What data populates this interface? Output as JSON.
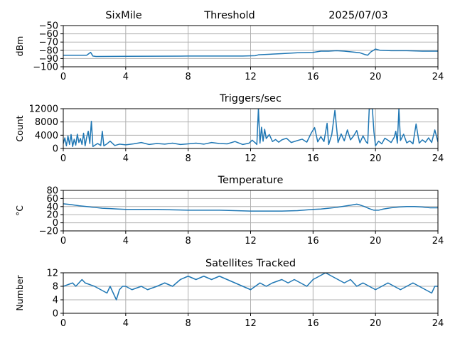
{
  "header": {
    "station": "SixMile",
    "title": "Threshold",
    "date": "2025/07/03"
  },
  "colors": {
    "series": "#1f77b4",
    "grid": "#b0b0b0",
    "axes": "#000000",
    "background": "#ffffff"
  },
  "chart_data": [
    {
      "type": "line",
      "title": "",
      "xlabel": "",
      "ylabel": "dBm",
      "xlim": [
        0,
        24
      ],
      "ylim": [
        -100,
        -50
      ],
      "x_ticks": [
        0,
        4,
        8,
        12,
        16,
        20,
        24
      ],
      "y_ticks": [
        -100,
        -90,
        -80,
        -70,
        -60,
        -50
      ],
      "x_tick_labels": [
        "0",
        "4",
        "8",
        "12",
        "16",
        "20",
        "24"
      ],
      "y_tick_labels": [
        "−100",
        "−90",
        "−80",
        "−70",
        "−60",
        "−50"
      ],
      "grid": true,
      "series": [
        {
          "x": [
            0,
            1.5,
            1.75,
            1.9,
            2.1,
            4,
            8,
            10,
            11.5,
            12.3,
            12.5,
            13,
            14,
            15,
            16,
            16.5,
            17,
            17.5,
            18,
            18.5,
            19,
            19.3,
            19.5,
            19.7,
            20,
            20.3,
            21,
            22,
            23,
            24
          ],
          "y": [
            -86,
            -86,
            -82.5,
            -87,
            -87.5,
            -87.3,
            -87,
            -87,
            -87,
            -86.5,
            -85.5,
            -85,
            -84,
            -83,
            -82.5,
            -81,
            -81,
            -80.5,
            -81,
            -82,
            -83,
            -85,
            -86,
            -82,
            -78.5,
            -80,
            -80.5,
            -80.5,
            -81,
            -81
          ]
        }
      ]
    },
    {
      "type": "line",
      "title": "Triggers/sec",
      "xlabel": "",
      "ylabel": "Count",
      "xlim": [
        0,
        24
      ],
      "ylim": [
        0,
        12000
      ],
      "x_ticks": [
        0,
        4,
        8,
        12,
        16,
        20,
        24
      ],
      "y_ticks": [
        0,
        4000,
        8000,
        12000
      ],
      "x_tick_labels": [
        "0",
        "4",
        "8",
        "12",
        "16",
        "20",
        "24"
      ],
      "y_tick_labels": [
        "0",
        "4000",
        "8000",
        "12000"
      ],
      "grid": true,
      "series": [
        {
          "x": [
            0,
            0.1,
            0.2,
            0.3,
            0.4,
            0.5,
            0.6,
            0.7,
            0.8,
            0.9,
            1.0,
            1.1,
            1.2,
            1.3,
            1.4,
            1.5,
            1.6,
            1.7,
            1.8,
            1.9,
            2.0,
            2.2,
            2.4,
            2.5,
            2.6,
            2.8,
            3.0,
            3.3,
            3.6,
            4.0,
            4.5,
            5.0,
            5.5,
            6.0,
            6.5,
            7.0,
            7.5,
            8.0,
            8.5,
            9.0,
            9.5,
            10.0,
            10.5,
            11.0,
            11.5,
            11.9,
            12.1,
            12.3,
            12.4,
            12.5,
            12.6,
            12.7,
            12.8,
            12.9,
            13.0,
            13.2,
            13.4,
            13.6,
            13.8,
            14.0,
            14.3,
            14.6,
            15.0,
            15.3,
            15.6,
            15.9,
            16.1,
            16.3,
            16.5,
            16.7,
            16.9,
            17.0,
            17.2,
            17.4,
            17.6,
            17.8,
            18.0,
            18.2,
            18.4,
            18.6,
            18.8,
            19.0,
            19.2,
            19.4,
            19.5,
            19.6,
            19.7,
            19.8,
            19.9,
            20.0,
            20.2,
            20.4,
            20.6,
            20.8,
            21.0,
            21.2,
            21.3,
            21.4,
            21.5,
            21.6,
            21.8,
            22.0,
            22.2,
            22.4,
            22.6,
            22.8,
            23.0,
            23.2,
            23.4,
            23.6,
            23.8,
            24.0
          ],
          "y": [
            1500,
            3200,
            800,
            3800,
            1200,
            4200,
            600,
            2800,
            1000,
            4300,
            1800,
            3000,
            1200,
            4600,
            800,
            3400,
            5200,
            1500,
            8200,
            600,
            900,
            1500,
            900,
            5200,
            800,
            1400,
            2200,
            900,
            1300,
            1100,
            1400,
            1800,
            1200,
            1500,
            1300,
            1600,
            1200,
            1400,
            1600,
            1300,
            1800,
            1500,
            1400,
            2100,
            1200,
            1600,
            2500,
            1700,
            1200,
            12000,
            1600,
            6400,
            2200,
            5800,
            3000,
            4200,
            2100,
            2700,
            1900,
            2600,
            3100,
            1800,
            2400,
            2800,
            1900,
            4800,
            6300,
            2000,
            3600,
            2100,
            7600,
            1200,
            4200,
            11500,
            1800,
            4400,
            2300,
            5600,
            2600,
            3800,
            5400,
            1700,
            3800,
            2000,
            1500,
            12000,
            12000,
            12000,
            5000,
            800,
            2200,
            1400,
            3100,
            2500,
            1800,
            3400,
            5200,
            1600,
            12000,
            2400,
            4300,
            1700,
            2300,
            1400,
            7400,
            1600,
            2600,
            1900,
            3200,
            1800,
            5600,
            2000
          ]
        }
      ]
    },
    {
      "type": "line",
      "title": "Temperature",
      "xlabel": "",
      "ylabel": "°C",
      "xlim": [
        0,
        24
      ],
      "ylim": [
        -20,
        80
      ],
      "x_ticks": [
        0,
        4,
        8,
        12,
        16,
        20,
        24
      ],
      "y_ticks": [
        -20,
        0,
        20,
        40,
        60,
        80
      ],
      "x_tick_labels": [
        "0",
        "4",
        "8",
        "12",
        "16",
        "20",
        "24"
      ],
      "y_tick_labels": [
        "−20",
        "0",
        "20",
        "40",
        "60",
        "80"
      ],
      "grid": true,
      "series": [
        {
          "x": [
            0,
            0.5,
            1,
            1.5,
            2,
            2.5,
            3,
            3.5,
            4,
            5,
            6,
            7,
            8,
            9,
            10,
            11,
            12,
            13,
            14,
            15,
            16,
            16.5,
            17,
            17.5,
            18,
            18.5,
            18.8,
            19,
            19.3,
            19.6,
            19.9,
            20.2,
            20.5,
            21,
            21.5,
            22,
            22.5,
            23,
            23.5,
            24
          ],
          "y": [
            47,
            45,
            42,
            40,
            38,
            36,
            35,
            34,
            33,
            33,
            33,
            32,
            31,
            31,
            31,
            30,
            29,
            29,
            29,
            30,
            33,
            34,
            36,
            38,
            41,
            44,
            46,
            44,
            40,
            35,
            31,
            31,
            34,
            37,
            39,
            40,
            40,
            39,
            37,
            37
          ]
        }
      ]
    },
    {
      "type": "line",
      "title": "Satellites Tracked",
      "xlabel": "",
      "ylabel": "Number",
      "xlim": [
        0,
        24
      ],
      "ylim": [
        0,
        12
      ],
      "x_ticks": [
        0,
        4,
        8,
        12,
        16,
        20,
        24
      ],
      "y_ticks": [
        0,
        4,
        8,
        12
      ],
      "x_tick_labels": [
        "0",
        "4",
        "8",
        "12",
        "16",
        "20",
        "24"
      ],
      "y_tick_labels": [
        "0",
        "4",
        "8",
        "12"
      ],
      "grid": true,
      "series": [
        {
          "x": [
            0,
            0.6,
            0.8,
            1.2,
            1.4,
            2.0,
            2.4,
            2.8,
            3.0,
            3.2,
            3.4,
            3.6,
            3.8,
            4.0,
            4.4,
            5.0,
            5.4,
            6.0,
            6.5,
            7.0,
            7.5,
            8.0,
            8.5,
            9.0,
            9.5,
            10.0,
            10.5,
            11.0,
            11.5,
            12.0,
            12.3,
            12.6,
            13.0,
            13.4,
            14.0,
            14.4,
            14.8,
            15.2,
            15.6,
            16.0,
            16.4,
            16.8,
            17.2,
            17.6,
            18.0,
            18.4,
            18.8,
            19.2,
            19.6,
            20.0,
            20.4,
            20.8,
            21.2,
            21.6,
            22.0,
            22.4,
            22.8,
            23.2,
            23.6,
            23.8,
            24.0
          ],
          "y": [
            8,
            9,
            8,
            10,
            9,
            8,
            7,
            6,
            8,
            6,
            4,
            7,
            8,
            8,
            7,
            8,
            7,
            8,
            9,
            8,
            10,
            11,
            10,
            11,
            10,
            11,
            10,
            9,
            8,
            7,
            8,
            9,
            8,
            9,
            10,
            9,
            10,
            9,
            8,
            10,
            11,
            12,
            11,
            10,
            9,
            10,
            8,
            9,
            8,
            7,
            8,
            9,
            8,
            7,
            8,
            9,
            8,
            7,
            6,
            8,
            8
          ]
        }
      ]
    }
  ]
}
